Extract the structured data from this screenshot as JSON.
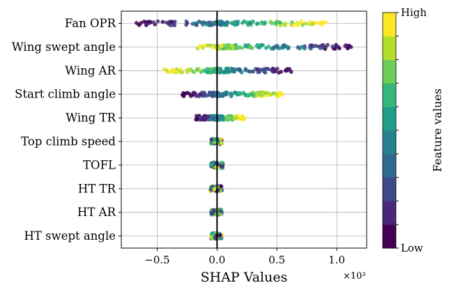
{
  "chart_data": {
    "type": "scatter",
    "subtype": "shap-beeswarm",
    "title": "",
    "xlabel": "SHAP Values",
    "x_scale_label": "×10³",
    "xlim": [
      -0.8,
      1.25
    ],
    "xticks": [
      -0.5,
      0.0,
      0.5,
      1.0
    ],
    "xtick_labels": [
      "−0.5",
      "0.0",
      "0.5",
      "1.0"
    ],
    "grid": true,
    "zero_line": 0.0,
    "features": [
      {
        "name": "Fan OPR",
        "min": -0.7,
        "max": 0.92,
        "low_side": "negative"
      },
      {
        "name": "Wing swept angle",
        "min": -0.21,
        "max": 1.17,
        "low_side": "positive"
      },
      {
        "name": "Wing AR",
        "min": -0.45,
        "max": 0.64,
        "low_side": "positive"
      },
      {
        "name": "Start climb angle",
        "min": -0.29,
        "max": 0.55,
        "low_side": "negative"
      },
      {
        "name": "Wing TR",
        "min": -0.19,
        "max": 0.23,
        "low_side": "negative"
      },
      {
        "name": "Top climb speed",
        "min": -0.05,
        "max": 0.04,
        "low_side": "mixed"
      },
      {
        "name": "TOFL",
        "min": -0.05,
        "max": 0.05,
        "low_side": "mixed"
      },
      {
        "name": "HT TR",
        "min": -0.06,
        "max": 0.05,
        "low_side": "mixed"
      },
      {
        "name": "HT AR",
        "min": -0.05,
        "max": 0.04,
        "low_side": "mixed"
      },
      {
        "name": "HT swept angle",
        "min": -0.05,
        "max": 0.04,
        "low_side": "mixed"
      }
    ],
    "colorbar": {
      "label": "Feature values",
      "high_label": "High",
      "low_label": "Low",
      "colormap": "viridis",
      "levels": 10,
      "colors": [
        "#440154",
        "#482878",
        "#3e4989",
        "#31688e",
        "#26828e",
        "#1f9e89",
        "#35b779",
        "#6ece58",
        "#b5de2b",
        "#fde725"
      ]
    }
  }
}
